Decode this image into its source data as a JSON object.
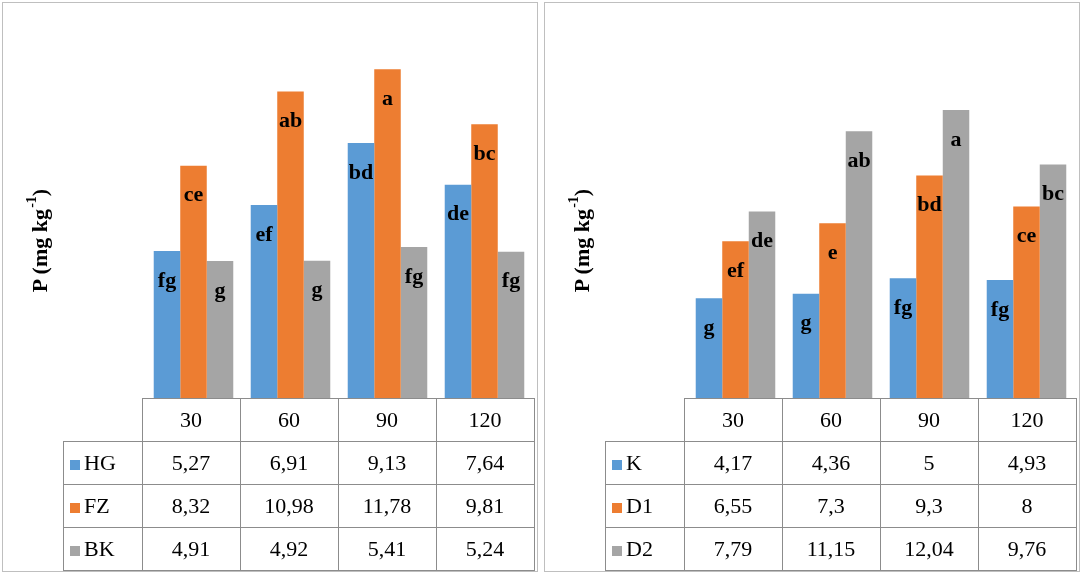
{
  "chart_data": [
    {
      "type": "bar",
      "ylabel": "P (mg kg$^{-1}$)",
      "categories": [
        "30",
        "60",
        "90",
        "120"
      ],
      "legend": "bottom",
      "grid": false,
      "series": [
        {
          "name": "HG",
          "color": "#5b9bd5",
          "values": [
            5.27,
            6.91,
            9.13,
            7.64
          ],
          "value_labels": [
            "5,27",
            "6,91",
            "9,13",
            "7,64"
          ]
        },
        {
          "name": "FZ",
          "color": "#ed7d31",
          "values": [
            8.32,
            10.98,
            11.78,
            9.81
          ],
          "value_labels": [
            "8,32",
            "10,98",
            "11,78",
            "9,81"
          ]
        },
        {
          "name": "BK",
          "color": "#a5a5a5",
          "values": [
            4.91,
            4.92,
            5.41,
            5.24
          ],
          "value_labels": [
            "4,91",
            "4,92",
            "5,41",
            "5,24"
          ]
        }
      ],
      "annotations": [
        "fg",
        "ce",
        "g",
        "ef",
        "ab",
        "g",
        "bd",
        "a",
        "fg",
        "de",
        "bc",
        "fg"
      ]
    },
    {
      "type": "bar",
      "ylabel": "P (mg kg$^{-1}$)",
      "categories": [
        "30",
        "60",
        "90",
        "120"
      ],
      "legend": "bottom",
      "grid": false,
      "series": [
        {
          "name": "K",
          "color": "#5b9bd5",
          "values": [
            4.17,
            4.36,
            5,
            4.93
          ],
          "value_labels": [
            "4,17",
            "4,36",
            "5",
            "4,93"
          ]
        },
        {
          "name": "D1",
          "color": "#ed7d31",
          "values": [
            6.55,
            7.3,
            9.3,
            8
          ],
          "value_labels": [
            "6,55",
            "7,3",
            "9,3",
            "8"
          ]
        },
        {
          "name": "D2",
          "color": "#a5a5a5",
          "values": [
            7.79,
            11.15,
            12.04,
            9.76
          ],
          "value_labels": [
            "7,79",
            "11,15",
            "12,04",
            "9,76"
          ]
        }
      ],
      "annotations": [
        "g",
        "ef",
        "de",
        "g",
        "e",
        "ab",
        "fg",
        "bd",
        "a",
        "fg",
        "ce",
        "bc"
      ]
    }
  ]
}
